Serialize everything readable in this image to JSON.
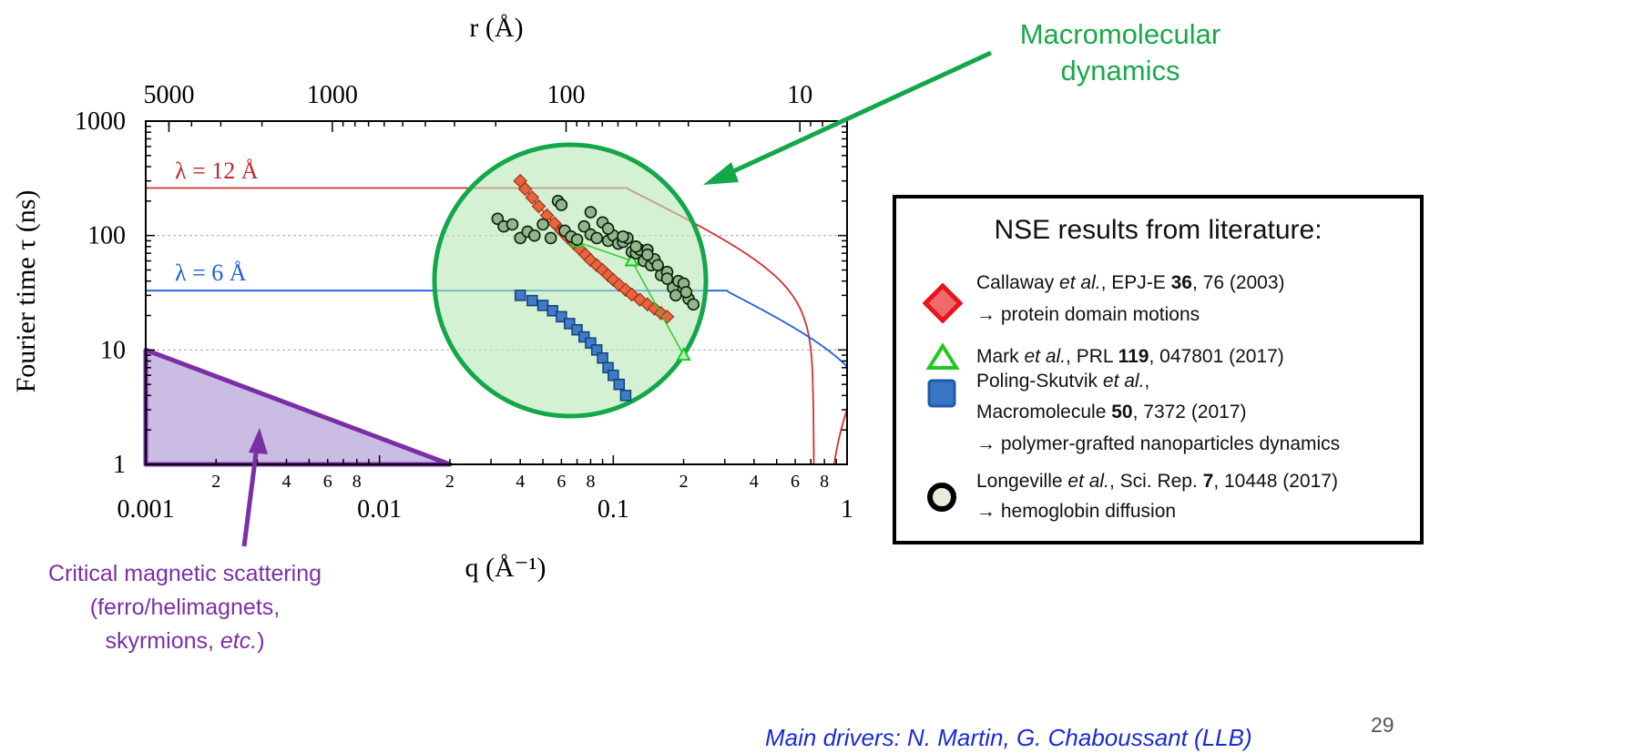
{
  "chart_data": {
    "type": "scatter",
    "xlabel": "q (Å⁻¹)",
    "x2label": "r (Å)",
    "ylabel": "Fourier time τ (ns)",
    "xscale": "log",
    "yscale": "log",
    "xlim": [
      0.001,
      1
    ],
    "ylim": [
      1,
      1000
    ],
    "x_tick_labels": [
      "0.001",
      "0.01",
      "0.1",
      "1"
    ],
    "x_minor_labels": [
      "2",
      "4",
      "6",
      "8",
      "2",
      "4",
      "6",
      "8",
      "2",
      "4",
      "6",
      "8"
    ],
    "x2_tick_labels": [
      "5000",
      "1000",
      "100",
      "10"
    ],
    "x2_tick_values": [
      5000,
      1000,
      100,
      10
    ],
    "y_tick_labels": [
      "1",
      "10",
      "100",
      "1000"
    ],
    "grid": "dashed at 10 and 100",
    "curves": [
      {
        "label": "λ = 12 Å",
        "color": "#d42f2f",
        "plateau": 260,
        "corner_q": 0.115
      },
      {
        "label": "λ = 6 Å",
        "color": "#1f5fd8",
        "plateau": 33,
        "corner_q": 0.31
      }
    ],
    "series": [
      {
        "legend": "Callaway et al.",
        "marker": "diamond",
        "color": "#e8553a",
        "x": [
          0.04,
          0.042,
          0.045,
          0.048,
          0.052,
          0.056,
          0.06,
          0.064,
          0.068,
          0.072,
          0.076,
          0.08,
          0.085,
          0.09,
          0.095,
          0.1,
          0.106,
          0.113,
          0.12,
          0.13,
          0.14,
          0.15,
          0.16,
          0.17
        ],
        "y": [
          300,
          255,
          215,
          180,
          150,
          128,
          110,
          96,
          85,
          76,
          68,
          61,
          55,
          50,
          45,
          41,
          37,
          33.5,
          30.5,
          27.5,
          25,
          23,
          21,
          19.5
        ]
      },
      {
        "legend": "Mark et al.",
        "marker": "triangle",
        "color": "#22c22a",
        "x": [
          0.07,
          0.12,
          0.2
        ],
        "y": [
          88,
          60,
          9
        ]
      },
      {
        "legend": "Poling-Skutvik et al.",
        "marker": "square",
        "color": "#2a62b8",
        "x": [
          0.04,
          0.045,
          0.05,
          0.055,
          0.06,
          0.065,
          0.07,
          0.075,
          0.08,
          0.085,
          0.09,
          0.095,
          0.1,
          0.106,
          0.113
        ],
        "y": [
          30,
          27,
          24.5,
          22,
          19.5,
          17,
          15,
          13,
          11.5,
          10,
          8.5,
          7,
          6,
          5,
          4
        ]
      },
      {
        "legend": "Longeville et al.",
        "marker": "circle",
        "color": "#2e5c28",
        "x": [
          0.032,
          0.034,
          0.037,
          0.04,
          0.043,
          0.046,
          0.05,
          0.054,
          0.058,
          0.062,
          0.066,
          0.07,
          0.075,
          0.08,
          0.085,
          0.09,
          0.095,
          0.1,
          0.105,
          0.11,
          0.115,
          0.12,
          0.125,
          0.13,
          0.135,
          0.14,
          0.145,
          0.15,
          0.16,
          0.17,
          0.18,
          0.19,
          0.2,
          0.21,
          0.22,
          0.06,
          0.08,
          0.095,
          0.11,
          0.125,
          0.14,
          0.155,
          0.17,
          0.185,
          0.205
        ],
        "y": [
          140,
          120,
          125,
          95,
          108,
          100,
          125,
          95,
          200,
          110,
          98,
          92,
          120,
          102,
          95,
          130,
          90,
          100,
          85,
          88,
          95,
          72,
          70,
          75,
          60,
          75,
          55,
          62,
          45,
          48,
          35,
          40,
          38,
          28,
          25,
          185,
          160,
          115,
          98,
          80,
          68,
          55,
          42,
          30,
          32
        ]
      }
    ],
    "region": {
      "color": "#a98fd0",
      "x": [
        0.001,
        0.02
      ],
      "y": [
        1,
        10
      ]
    }
  },
  "labels": {
    "lambda12": "λ = 12 Å",
    "lambda6": "λ = 6 Å",
    "macro_line1": "Macromolecular",
    "macro_line2": "dynamics",
    "critical_line1": "Critical magnetic scattering",
    "critical_line2": "(ferro/helimagnets,",
    "critical_line3a": "skyrmions, ",
    "critical_line3b": "etc.",
    "critical_line3c": ")"
  },
  "legend": {
    "title": "NSE results from literature:",
    "entry1_a": "Callaway ",
    "entry1_b": "et al.",
    "entry1_c": ", EPJ-E ",
    "entry1_d": "36",
    "entry1_e": ", 76 (2003)",
    "entry1_sub": "→ protein domain motions",
    "entry2_a": "Mark ",
    "entry2_b": "et al.",
    "entry2_c": ", PRL ",
    "entry2_d": "119",
    "entry2_e": ", 047801 (2017)",
    "entry3_a": "Poling-Skutvik ",
    "entry3_b": "et al.",
    "entry3_c": ",",
    "entry3_line2a": "Macromolecule ",
    "entry3_line2b": "50",
    "entry3_line2c": ", 7372 (2017)",
    "entry3_sub": "→ polymer-grafted nanoparticles dynamics",
    "entry4_a": "Longeville ",
    "entry4_b": "et al.",
    "entry4_c": ", Sci. Rep. ",
    "entry4_d": "7",
    "entry4_e": ", 10448 (2017)",
    "entry4_sub": "→ hemoglobin diffusion"
  },
  "footer": "Main drivers: N. Martin, G. Chaboussant (LLB)",
  "page_number": "29",
  "colors": {
    "macro": "#1aa84a",
    "critical": "#7b2fa6",
    "footer": "#1a2bd6"
  }
}
